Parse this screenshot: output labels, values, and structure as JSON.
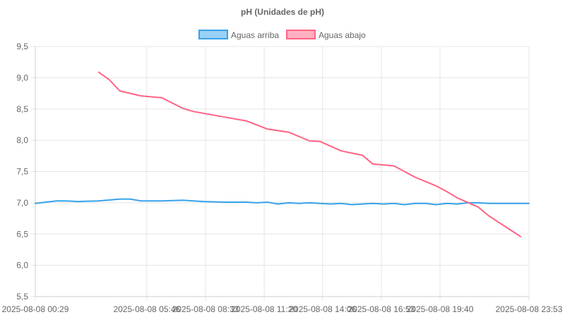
{
  "chart_data": {
    "type": "line",
    "title": "pH (Unidades de pH)",
    "xlabel": "",
    "ylabel": "",
    "ylim": [
      5.5,
      9.5
    ],
    "y_ticks": [
      "9,5",
      "9,0",
      "8,5",
      "8,0",
      "7,5",
      "7,0",
      "6,5",
      "6,0",
      "5,5"
    ],
    "y_tick_values": [
      9.5,
      9.0,
      8.5,
      8.0,
      7.5,
      7.0,
      6.5,
      6.0,
      5.5
    ],
    "x_ticks": [
      "2025-08-08 00:29",
      "2025-08-08 05:46",
      "2025-08-08 08:33",
      "2025-08-08 11:20",
      "2025-08-08 14:06",
      "2025-08-08 16:53",
      "2025-08-08 19:40",
      "2025-08-08 23:53"
    ],
    "x_tick_minutes": [
      0,
      317,
      484,
      651,
      817,
      984,
      1151,
      1404
    ],
    "grid": true,
    "legend_position": "top",
    "series": [
      {
        "name": "Aguas arriba",
        "color": "#36a2eb",
        "fill": "#9ad0f5",
        "x": [
          0,
          60,
          90,
          120,
          180,
          240,
          270,
          300,
          360,
          420,
          450,
          480,
          540,
          600,
          630,
          660,
          690,
          720,
          750,
          780,
          810,
          840,
          870,
          900,
          960,
          990,
          1020,
          1050,
          1080,
          1110,
          1140,
          1170,
          1200,
          1230,
          1260,
          1290,
          1320,
          1350,
          1404
        ],
        "y": [
          6.99,
          7.03,
          7.03,
          7.02,
          7.03,
          7.06,
          7.06,
          7.03,
          7.03,
          7.04,
          7.03,
          7.02,
          7.01,
          7.01,
          7.0,
          7.01,
          6.98,
          7.0,
          6.99,
          7.0,
          6.99,
          6.98,
          6.99,
          6.97,
          6.99,
          6.98,
          6.99,
          6.97,
          6.99,
          6.99,
          6.97,
          6.99,
          6.98,
          7.0,
          7.0,
          6.99,
          6.99,
          6.99,
          6.99
        ]
      },
      {
        "name": "Aguas abajo",
        "color": "#ff6384",
        "fill": "#ffb1c1",
        "x": [
          180,
          210,
          240,
          300,
          360,
          420,
          450,
          540,
          600,
          660,
          720,
          780,
          810,
          870,
          930,
          960,
          1020,
          1050,
          1080,
          1110,
          1140,
          1170,
          1200,
          1260,
          1290,
          1320,
          1350,
          1380
        ],
        "y": [
          9.09,
          8.97,
          8.79,
          8.71,
          8.68,
          8.51,
          8.46,
          8.37,
          8.31,
          8.18,
          8.13,
          7.99,
          7.98,
          7.83,
          7.76,
          7.62,
          7.59,
          7.5,
          7.41,
          7.34,
          7.27,
          7.18,
          7.08,
          6.93,
          6.79,
          6.68,
          6.57,
          6.46
        ]
      }
    ]
  }
}
